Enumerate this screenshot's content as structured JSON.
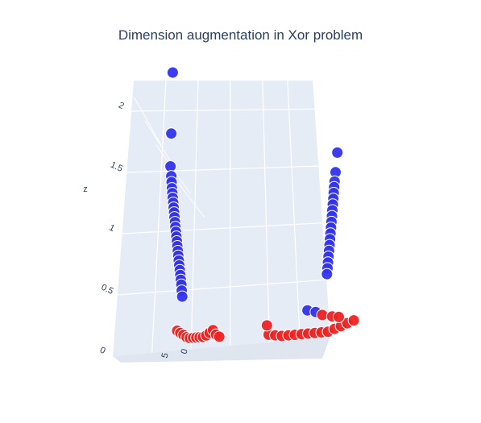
{
  "chart_data": {
    "type": "scatter3d",
    "title": "Dimension augmentation in Xor problem",
    "zlabel": "z",
    "z_ticks": [
      "0",
      "0.5",
      "1",
      "1.5",
      "2"
    ],
    "z_range": [
      0,
      2.25
    ],
    "x_ticks_visible": [
      "5",
      "0"
    ],
    "grid": true,
    "colors": {
      "positive": "#3333ee",
      "negative": "#ee2222",
      "scene": "#e5ecf6",
      "grid": "#ffffff",
      "text": "#2a3f5f"
    },
    "series": [
      {
        "color": "positive",
        "points": [
          [
            -6.0,
            0.0,
            2.25
          ],
          [
            -5.8,
            0.0,
            1.75
          ],
          [
            -5.7,
            0.0,
            1.48
          ],
          [
            -5.6,
            0.0,
            1.4
          ],
          [
            -5.55,
            0.0,
            1.35
          ],
          [
            -5.5,
            0.0,
            1.3
          ],
          [
            -5.45,
            0.0,
            1.26
          ],
          [
            -5.4,
            0.0,
            1.22
          ],
          [
            -5.35,
            0.0,
            1.18
          ],
          [
            -5.3,
            0.0,
            1.14
          ],
          [
            -5.25,
            0.0,
            1.1
          ],
          [
            -5.2,
            0.0,
            1.06
          ],
          [
            -5.15,
            0.0,
            1.02
          ],
          [
            -5.1,
            0.0,
            0.98
          ],
          [
            -5.05,
            0.0,
            0.94
          ],
          [
            -5.0,
            0.0,
            0.9
          ],
          [
            -4.95,
            0.0,
            0.86
          ],
          [
            -4.9,
            0.0,
            0.82
          ],
          [
            -4.85,
            0.0,
            0.78
          ],
          [
            -4.8,
            0.0,
            0.74
          ],
          [
            -4.75,
            0.0,
            0.7
          ],
          [
            -4.7,
            0.0,
            0.66
          ],
          [
            -4.65,
            0.0,
            0.62
          ],
          [
            -4.6,
            0.0,
            0.58
          ],
          [
            -4.55,
            0.0,
            0.54
          ],
          [
            -4.5,
            0.0,
            0.5
          ],
          [
            -4.45,
            0.0,
            0.45
          ],
          [
            -4.4,
            0.0,
            0.4
          ],
          [
            5.8,
            0.0,
            1.55
          ],
          [
            5.6,
            0.0,
            1.38
          ],
          [
            5.5,
            0.0,
            1.3
          ],
          [
            5.45,
            0.0,
            1.25
          ],
          [
            5.4,
            0.0,
            1.2
          ],
          [
            5.35,
            0.0,
            1.15
          ],
          [
            5.3,
            0.0,
            1.1
          ],
          [
            5.25,
            0.0,
            1.05
          ],
          [
            5.2,
            0.0,
            1.0
          ],
          [
            5.15,
            0.0,
            0.95
          ],
          [
            5.1,
            0.0,
            0.9
          ],
          [
            5.05,
            0.0,
            0.85
          ],
          [
            5.0,
            0.0,
            0.8
          ],
          [
            4.95,
            0.0,
            0.75
          ],
          [
            4.9,
            0.0,
            0.7
          ],
          [
            4.85,
            0.0,
            0.65
          ],
          [
            4.8,
            0.0,
            0.6
          ],
          [
            4.75,
            0.0,
            0.55
          ],
          [
            4.7,
            0.0,
            0.5
          ],
          [
            3.4,
            0.0,
            0.2
          ],
          [
            3.9,
            0.0,
            0.18
          ]
        ]
      },
      {
        "color": "negative",
        "points": [
          [
            -4.6,
            0.0,
            0.12
          ],
          [
            -4.4,
            0.0,
            0.1
          ],
          [
            -4.2,
            0.0,
            0.08
          ],
          [
            -4.0,
            0.0,
            0.06
          ],
          [
            -3.8,
            0.0,
            0.05
          ],
          [
            -3.6,
            0.0,
            0.05
          ],
          [
            -3.4,
            0.0,
            0.05
          ],
          [
            -3.2,
            0.0,
            0.05
          ],
          [
            -3.0,
            0.0,
            0.05
          ],
          [
            -2.8,
            0.0,
            0.06
          ],
          [
            -2.6,
            0.0,
            0.08
          ],
          [
            -2.4,
            0.0,
            0.1
          ],
          [
            -2.2,
            0.0,
            0.06
          ],
          [
            -2.0,
            0.0,
            0.04
          ],
          [
            1.0,
            0.0,
            0.02
          ],
          [
            1.4,
            0.0,
            0.01
          ],
          [
            1.8,
            0.0,
            0.0
          ],
          [
            2.2,
            0.0,
            0.0
          ],
          [
            2.6,
            0.0,
            0.0
          ],
          [
            3.0,
            0.0,
            0.0
          ],
          [
            3.4,
            0.0,
            0.0
          ],
          [
            3.8,
            0.0,
            0.0
          ],
          [
            4.2,
            0.0,
            0.0
          ],
          [
            4.6,
            0.0,
            0.0
          ],
          [
            5.0,
            0.0,
            0.02
          ],
          [
            5.4,
            0.0,
            0.04
          ],
          [
            5.8,
            0.0,
            0.06
          ],
          [
            6.2,
            0.0,
            0.08
          ],
          [
            4.3,
            0.0,
            0.15
          ],
          [
            4.9,
            0.0,
            0.13
          ],
          [
            5.3,
            0.0,
            0.12
          ],
          [
            0.9,
            0.0,
            0.1
          ]
        ]
      }
    ]
  }
}
